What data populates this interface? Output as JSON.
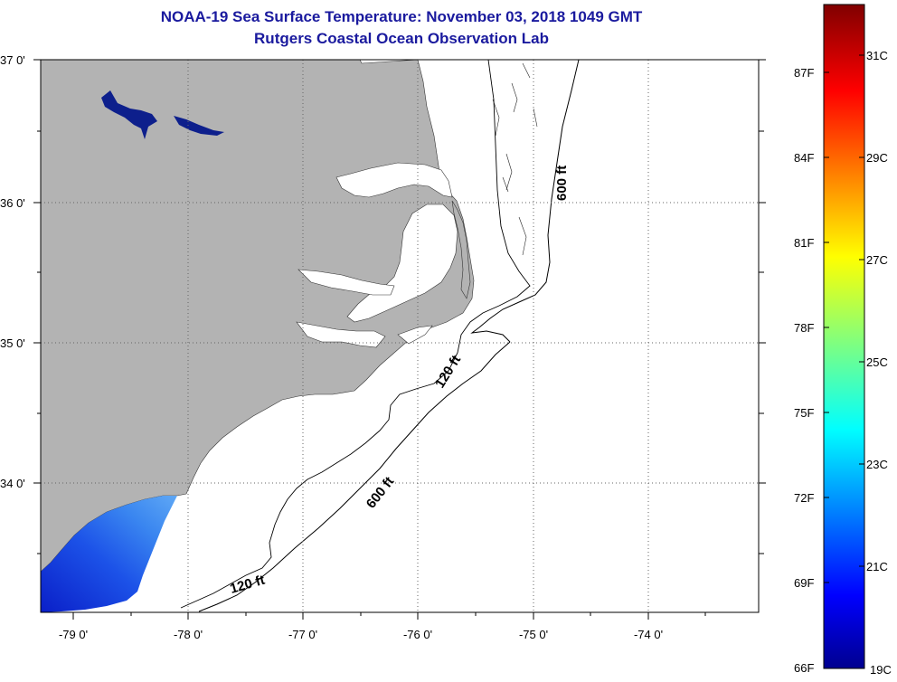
{
  "title": {
    "line1": "NOAA-19 Sea Surface Temperature:  November 03, 2018 1049 GMT",
    "line2": "Rutgers Coastal Ocean Observation Lab"
  },
  "axes": {
    "lat_labels": [
      "37 0'",
      "36 0'",
      "35 0'",
      "34 0'"
    ],
    "lon_labels": [
      "-79 0'",
      "-78 0'",
      "-77 0'",
      "-76 0'",
      "-75 0'",
      "-74 0'"
    ]
  },
  "contours": {
    "label_600_north": "600 ft",
    "label_120_mid": "120 ft",
    "label_600_south": "600 ft",
    "label_120_south": "120 ft"
  },
  "colorbar": {
    "fahrenheit_labels": [
      "87F",
      "84F",
      "81F",
      "78F",
      "75F",
      "72F",
      "69F",
      "66F"
    ],
    "celsius_labels": [
      "31C",
      "29C",
      "27C",
      "25C",
      "23C",
      "21C",
      "19C"
    ]
  },
  "colors": {
    "land": "#b3b3b3",
    "title": "#1a1a9e",
    "sst_cold": "#0a2bd6",
    "sst_mid": "#3a7ff0",
    "inland_water": "#0d1f8c"
  }
}
